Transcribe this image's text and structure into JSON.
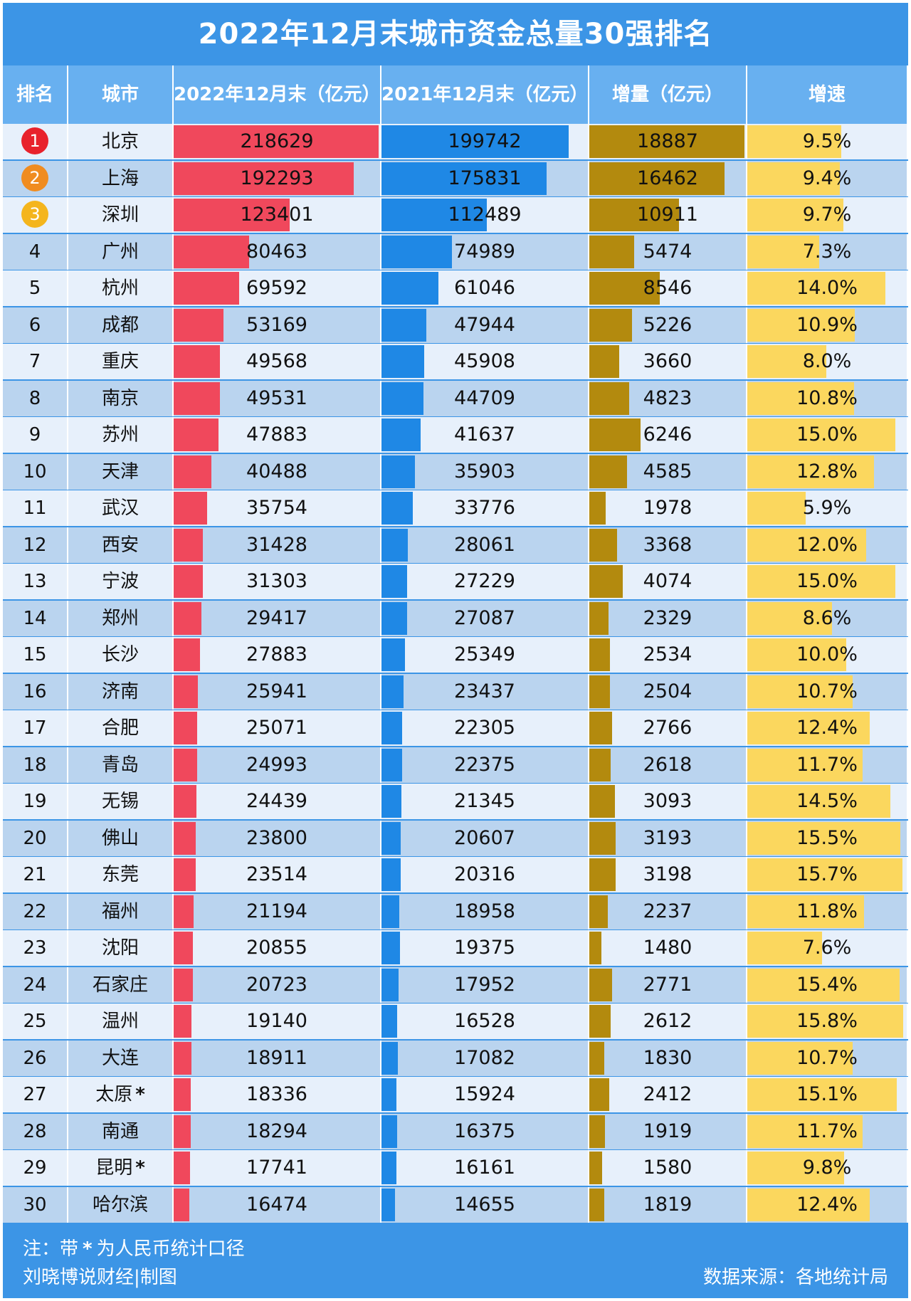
{
  "title": "2022年12月末城市资金总量30强排名",
  "headers": {
    "rank": "排名",
    "city": "城市",
    "y2022": "2022年12月末（亿元）",
    "y2021": "2021年12月末（亿元）",
    "increase": "增量（亿元）",
    "growth": "增速"
  },
  "colors": {
    "y2022": "#f0485c",
    "y2021": "#1f88e5",
    "increase": "#b38a0e",
    "growth": "#fbd75e",
    "medal_1": "#e8222c",
    "medal_2": "#f08c20",
    "medal_3": "#f4b51d",
    "header_bg": "#68b0f0",
    "frame_bg": "#3c95e6"
  },
  "chart_data": {
    "type": "table",
    "columns": [
      "排名",
      "城市",
      "2022年12月末（亿元）",
      "2021年12月末（亿元）",
      "增量（亿元）",
      "增速"
    ],
    "rows": [
      {
        "rank": "1",
        "city": "北京",
        "marker": "",
        "v2022": 218629,
        "v2021": 199742,
        "inc": 18887,
        "growth": "9.5%"
      },
      {
        "rank": "2",
        "city": "上海",
        "marker": "",
        "v2022": 192293,
        "v2021": 175831,
        "inc": 16462,
        "growth": "9.4%"
      },
      {
        "rank": "3",
        "city": "深圳",
        "marker": "",
        "v2022": 123401,
        "v2021": 112489,
        "inc": 10911,
        "growth": "9.7%"
      },
      {
        "rank": "4",
        "city": "广州",
        "marker": "",
        "v2022": 80463,
        "v2021": 74989,
        "inc": 5474,
        "growth": "7.3%"
      },
      {
        "rank": "5",
        "city": "杭州",
        "marker": "",
        "v2022": 69592,
        "v2021": 61046,
        "inc": 8546,
        "growth": "14.0%"
      },
      {
        "rank": "6",
        "city": "成都",
        "marker": "",
        "v2022": 53169,
        "v2021": 47944,
        "inc": 5226,
        "growth": "10.9%"
      },
      {
        "rank": "7",
        "city": "重庆",
        "marker": "",
        "v2022": 49568,
        "v2021": 45908,
        "inc": 3660,
        "growth": "8.0%"
      },
      {
        "rank": "8",
        "city": "南京",
        "marker": "",
        "v2022": 49531,
        "v2021": 44709,
        "inc": 4823,
        "growth": "10.8%"
      },
      {
        "rank": "9",
        "city": "苏州",
        "marker": "",
        "v2022": 47883,
        "v2021": 41637,
        "inc": 6246,
        "growth": "15.0%"
      },
      {
        "rank": "10",
        "city": "天津",
        "marker": "",
        "v2022": 40488,
        "v2021": 35903,
        "inc": 4585,
        "growth": "12.8%"
      },
      {
        "rank": "11",
        "city": "武汉",
        "marker": "",
        "v2022": 35754,
        "v2021": 33776,
        "inc": 1978,
        "growth": "5.9%"
      },
      {
        "rank": "12",
        "city": "西安",
        "marker": "",
        "v2022": 31428,
        "v2021": 28061,
        "inc": 3368,
        "growth": "12.0%"
      },
      {
        "rank": "13",
        "city": "宁波",
        "marker": "",
        "v2022": 31303,
        "v2021": 27229,
        "inc": 4074,
        "growth": "15.0%"
      },
      {
        "rank": "14",
        "city": "郑州",
        "marker": "",
        "v2022": 29417,
        "v2021": 27087,
        "inc": 2329,
        "growth": "8.6%"
      },
      {
        "rank": "15",
        "city": "长沙",
        "marker": "",
        "v2022": 27883,
        "v2021": 25349,
        "inc": 2534,
        "growth": "10.0%"
      },
      {
        "rank": "16",
        "city": "济南",
        "marker": "",
        "v2022": 25941,
        "v2021": 23437,
        "inc": 2504,
        "growth": "10.7%"
      },
      {
        "rank": "17",
        "city": "合肥",
        "marker": "",
        "v2022": 25071,
        "v2021": 22305,
        "inc": 2766,
        "growth": "12.4%"
      },
      {
        "rank": "18",
        "city": "青岛",
        "marker": "",
        "v2022": 24993,
        "v2021": 22375,
        "inc": 2618,
        "growth": "11.7%"
      },
      {
        "rank": "19",
        "city": "无锡",
        "marker": "",
        "v2022": 24439,
        "v2021": 21345,
        "inc": 3093,
        "growth": "14.5%"
      },
      {
        "rank": "20",
        "city": "佛山",
        "marker": "",
        "v2022": 23800,
        "v2021": 20607,
        "inc": 3193,
        "growth": "15.5%"
      },
      {
        "rank": "21",
        "city": "东莞",
        "marker": "",
        "v2022": 23514,
        "v2021": 20316,
        "inc": 3198,
        "growth": "15.7%"
      },
      {
        "rank": "22",
        "city": "福州",
        "marker": "",
        "v2022": 21194,
        "v2021": 18958,
        "inc": 2237,
        "growth": "11.8%"
      },
      {
        "rank": "23",
        "city": "沈阳",
        "marker": "",
        "v2022": 20855,
        "v2021": 19375,
        "inc": 1480,
        "growth": "7.6%"
      },
      {
        "rank": "24",
        "city": "石家庄",
        "marker": "",
        "v2022": 20723,
        "v2021": 17952,
        "inc": 2771,
        "growth": "15.4%"
      },
      {
        "rank": "25",
        "city": "温州",
        "marker": "",
        "v2022": 19140,
        "v2021": 16528,
        "inc": 2612,
        "growth": "15.8%"
      },
      {
        "rank": "26",
        "city": "大连",
        "marker": "",
        "v2022": 18911,
        "v2021": 17082,
        "inc": 1830,
        "growth": "10.7%"
      },
      {
        "rank": "27",
        "city": "太原",
        "marker": "*",
        "v2022": 18336,
        "v2021": 15924,
        "inc": 2412,
        "growth": "15.1%"
      },
      {
        "rank": "28",
        "city": "南通",
        "marker": "",
        "v2022": 18294,
        "v2021": 16375,
        "inc": 1919,
        "growth": "11.7%"
      },
      {
        "rank": "29",
        "city": "昆明",
        "marker": "*",
        "v2022": 17741,
        "v2021": 16161,
        "inc": 1580,
        "growth": "9.8%"
      },
      {
        "rank": "30",
        "city": "哈尔滨",
        "marker": "",
        "v2022": 16474,
        "v2021": 14655,
        "inc": 1819,
        "growth": "12.4%"
      }
    ]
  },
  "footer": {
    "note_prefix": "注：带",
    "note_star": "*",
    "note_suffix": "为人民币统计口径",
    "credit": "刘晓博说财经|制图",
    "source": "数据来源：各地统计局"
  }
}
